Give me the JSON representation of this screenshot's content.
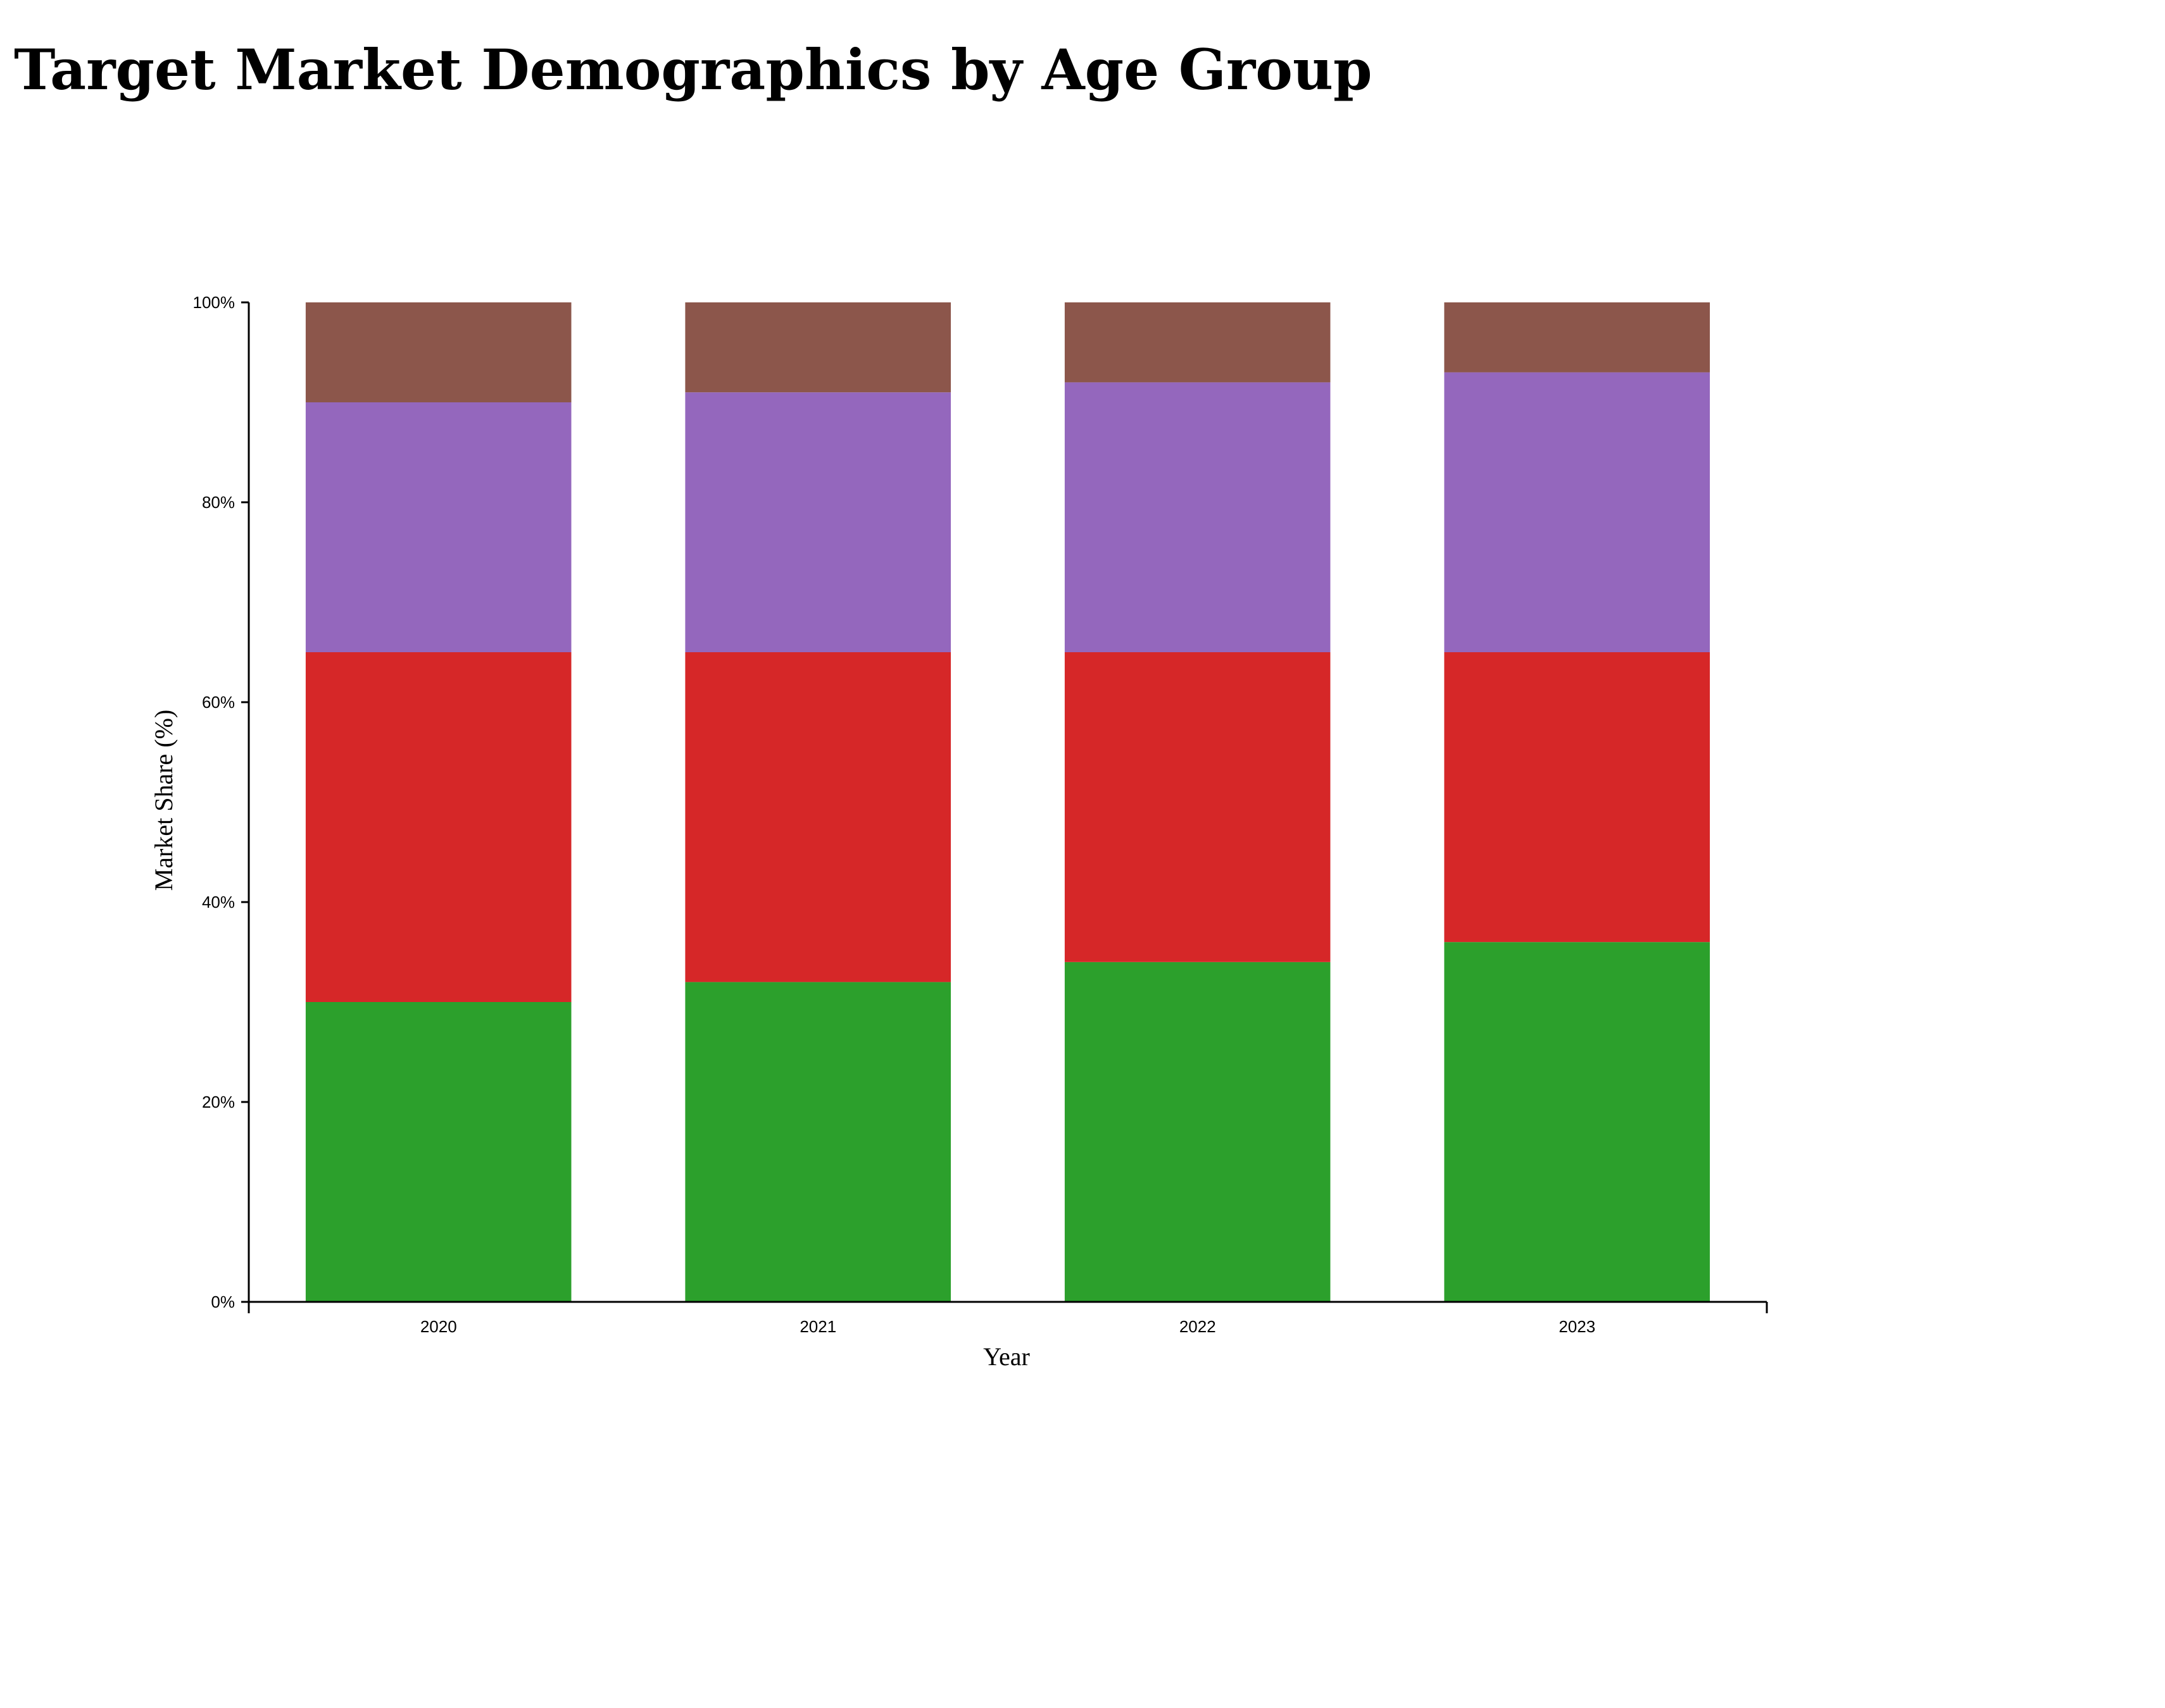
{
  "chart_data": {
    "type": "bar",
    "stacked": true,
    "title": "Target Market Demographics by Age Group",
    "xlabel": "Year",
    "ylabel": "Market Share (%)",
    "categories": [
      "2020",
      "2021",
      "2022",
      "2023"
    ],
    "ylim": [
      0,
      100
    ],
    "yticks": [
      "0%",
      "20%",
      "40%",
      "60%",
      "80%",
      "100%"
    ],
    "ytick_values": [
      0,
      20,
      40,
      60,
      80,
      100
    ],
    "grid": false,
    "series": [
      {
        "values": [
          30,
          32,
          34,
          36
        ],
        "color": "#2ca02c"
      },
      {
        "values": [
          35,
          33,
          31,
          29
        ],
        "color": "#d62728"
      },
      {
        "values": [
          25,
          26,
          27,
          28
        ],
        "color": "#9467bd"
      },
      {
        "values": [
          10,
          9,
          8,
          7
        ],
        "color": "#8c564b"
      }
    ]
  }
}
